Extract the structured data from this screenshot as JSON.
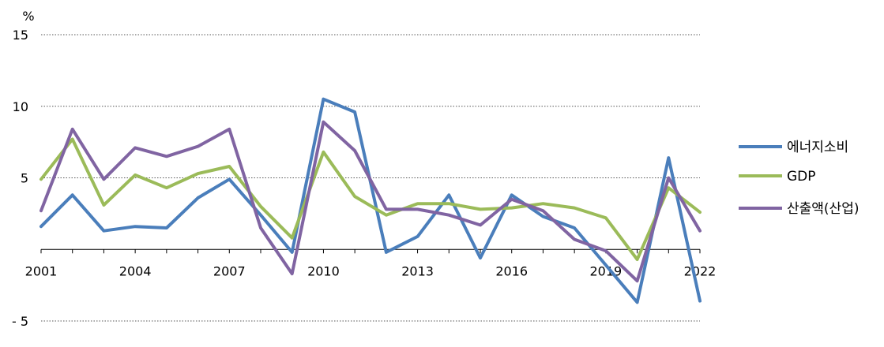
{
  "chart_data": {
    "type": "line",
    "unit_label": "%",
    "x": [
      2001,
      2002,
      2003,
      2004,
      2005,
      2006,
      2007,
      2008,
      2009,
      2010,
      2011,
      2012,
      2013,
      2014,
      2015,
      2016,
      2017,
      2018,
      2019,
      2020,
      2021,
      2022
    ],
    "x_tick_labels": [
      "2001",
      "2004",
      "2007",
      "2010",
      "2013",
      "2016",
      "2019",
      "2022"
    ],
    "y_ticks": [
      15,
      10,
      5,
      -5
    ],
    "y_tick_labels": [
      "15",
      "10",
      "5",
      "- 5"
    ],
    "ylim": [
      -5,
      15
    ],
    "grid": "horizontal dotted",
    "legend_position": "right",
    "series": [
      {
        "name": "에너지소비",
        "color": "#4a7ebb",
        "values": [
          1.6,
          3.8,
          1.3,
          1.6,
          1.5,
          3.6,
          4.9,
          2.4,
          -0.2,
          10.5,
          9.6,
          -0.2,
          0.9,
          3.8,
          -0.6,
          3.8,
          2.3,
          1.5,
          -1.1,
          -3.7,
          6.4,
          -3.6
        ]
      },
      {
        "name": "GDP",
        "color": "#9bbb59",
        "values": [
          4.9,
          7.7,
          3.1,
          5.2,
          4.3,
          5.3,
          5.8,
          3.0,
          0.8,
          6.8,
          3.7,
          2.4,
          3.2,
          3.2,
          2.8,
          2.9,
          3.2,
          2.9,
          2.2,
          -0.7,
          4.3,
          2.6
        ]
      },
      {
        "name": "산출액(산업)",
        "color": "#8064a2",
        "values": [
          2.7,
          8.4,
          4.9,
          7.1,
          6.5,
          7.2,
          8.4,
          1.5,
          -1.7,
          8.9,
          6.9,
          2.8,
          2.8,
          2.4,
          1.7,
          3.5,
          2.7,
          0.7,
          -0.1,
          -2.2,
          5.0,
          1.3
        ]
      }
    ]
  }
}
